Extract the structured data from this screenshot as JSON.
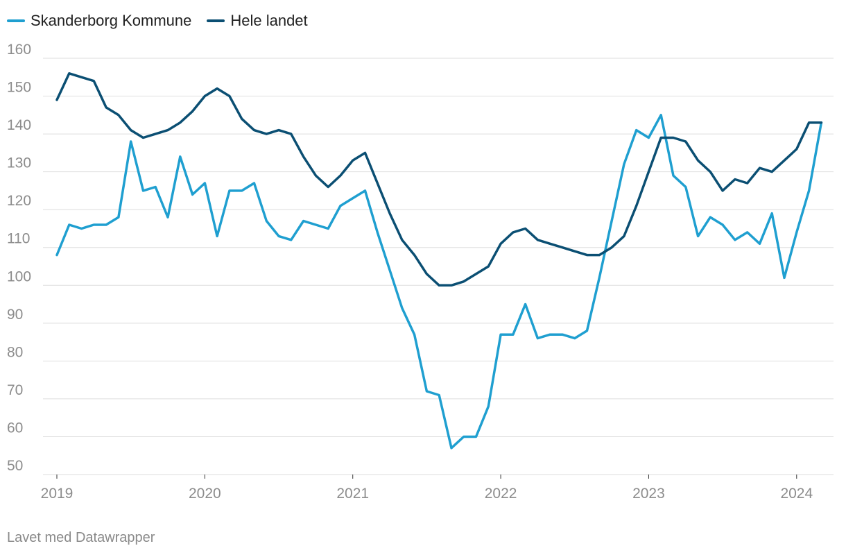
{
  "chart_data": {
    "type": "line",
    "xlabel": "",
    "ylabel": "",
    "ylim": [
      50,
      160
    ],
    "yticks": [
      "50",
      "60",
      "70",
      "80",
      "90",
      "100",
      "110",
      "120",
      "130",
      "140",
      "150",
      "160"
    ],
    "xticks": [
      "2019",
      "2020",
      "2021",
      "2022",
      "2023",
      "2024"
    ],
    "grid": true,
    "legend_position": "top-left",
    "x_start": "2019-01",
    "x_step": "month",
    "series": [
      {
        "name": "Skanderborg Kommune",
        "color": "#1f9fd0",
        "values": [
          108,
          116,
          115,
          116,
          116,
          118,
          138,
          125,
          126,
          118,
          134,
          124,
          127,
          113,
          125,
          125,
          127,
          117,
          113,
          112,
          117,
          116,
          115,
          121,
          123,
          125,
          114,
          104,
          94,
          87,
          72,
          71,
          57,
          60,
          60,
          68,
          87,
          87,
          95,
          86,
          87,
          87,
          86,
          88,
          102,
          117,
          132,
          141,
          139,
          145,
          129,
          126,
          113,
          118,
          116,
          112,
          114,
          111,
          119,
          102,
          114,
          125,
          143
        ]
      },
      {
        "name": "Hele landet",
        "color": "#0b4f73",
        "values": [
          149,
          156,
          155,
          154,
          147,
          145,
          141,
          139,
          140,
          141,
          143,
          146,
          150,
          152,
          150,
          144,
          141,
          140,
          141,
          140,
          134,
          129,
          126,
          129,
          133,
          135,
          127,
          119,
          112,
          108,
          103,
          100,
          100,
          101,
          103,
          105,
          111,
          114,
          115,
          112,
          111,
          110,
          109,
          108,
          108,
          110,
          113,
          121,
          130,
          139,
          139,
          138,
          133,
          130,
          125,
          128,
          127,
          131,
          130,
          133,
          136,
          143,
          143
        ]
      }
    ]
  },
  "footer": {
    "credit": "Lavet med Datawrapper"
  }
}
